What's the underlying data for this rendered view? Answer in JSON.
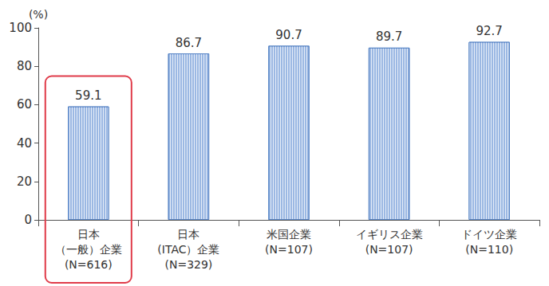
{
  "chart_data": {
    "type": "bar",
    "ylabel": "(%)",
    "categories": [
      "日本\n（一般）企業\n(N=616)",
      "日本\n(ITAC）企業\n(N=329)",
      "米国企業\n(N=107)",
      "イギリス企業\n(N=107)",
      "ドイツ企業\n(N=110)"
    ],
    "values": [
      59.1,
      86.7,
      90.7,
      89.7,
      92.7
    ],
    "color": "#9bb8e3",
    "ylim": [
      0,
      100
    ],
    "yticks": [
      0,
      20,
      40,
      60,
      80,
      100
    ],
    "grid": false,
    "data_labels": true
  }
}
